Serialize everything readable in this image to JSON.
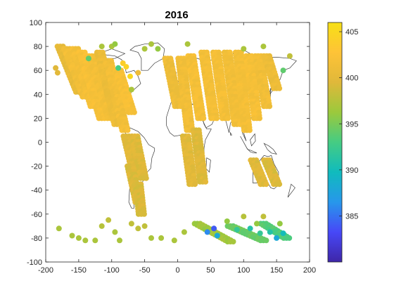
{
  "chart_data": {
    "type": "scatter",
    "title": "2016",
    "xlabel": "",
    "ylabel": "",
    "xlim": [
      -200,
      200
    ],
    "ylim": [
      -100,
      100
    ],
    "x_ticks": [
      -200,
      -150,
      -100,
      -50,
      0,
      50,
      100,
      150,
      200
    ],
    "y_ticks": [
      100,
      80,
      60,
      40,
      20,
      0,
      -20,
      -40,
      -60,
      -80,
      -100
    ],
    "grid": false,
    "colorbar": {
      "range": [
        380,
        406
      ],
      "ticks": [
        385,
        390,
        395,
        400,
        405
      ],
      "colormap": "parula",
      "colors": [
        "#3e26a8",
        "#4748f7",
        "#2797eb",
        "#10bbbd",
        "#45cc83",
        "#9bc93c",
        "#e0b83a",
        "#fec337",
        "#f7e016"
      ]
    },
    "background_map": "world coastlines",
    "swaths": [
      {
        "lon_start": -178,
        "lat_start": 80,
        "lon_end": -150,
        "lat_end": 42,
        "value": 400.4
      },
      {
        "lon_start": -168,
        "lat_start": 78,
        "lon_end": -140,
        "lat_end": 38,
        "value": 401.5
      },
      {
        "lon_start": -155,
        "lat_start": 78,
        "lon_end": -128,
        "lat_end": 30,
        "value": 401.8
      },
      {
        "lon_start": -145,
        "lat_start": 75,
        "lon_end": -115,
        "lat_end": 20,
        "value": 402.0
      },
      {
        "lon_start": -130,
        "lat_start": 72,
        "lon_end": -102,
        "lat_end": 20,
        "value": 401.6
      },
      {
        "lon_start": -118,
        "lat_start": 75,
        "lon_end": -92,
        "lat_end": 15,
        "value": 401.0
      },
      {
        "lon_start": -105,
        "lat_start": 68,
        "lon_end": -80,
        "lat_end": 10,
        "value": 401.6
      },
      {
        "lon_start": -90,
        "lat_start": 60,
        "lon_end": -70,
        "lat_end": 25,
        "value": 402.0
      },
      {
        "lon_start": -78,
        "lat_start": 5,
        "lon_end": -65,
        "lat_end": -25,
        "value": 399.8
      },
      {
        "lon_start": -65,
        "lat_start": 5,
        "lon_end": -52,
        "lat_end": -30,
        "value": 399.6
      },
      {
        "lon_start": -72,
        "lat_start": -20,
        "lon_end": -60,
        "lat_end": -50,
        "value": 399.4
      },
      {
        "lon_start": -60,
        "lat_start": -35,
        "lon_end": -55,
        "lat_end": -60,
        "value": 399.2
      },
      {
        "lon_start": -15,
        "lat_start": 70,
        "lon_end": 0,
        "lat_end": 30,
        "value": 401.0
      },
      {
        "lon_start": 5,
        "lat_start": 70,
        "lon_end": 18,
        "lat_end": 10,
        "value": 401.4
      },
      {
        "lon_start": 20,
        "lat_start": 72,
        "lon_end": 35,
        "lat_end": 20,
        "value": 401.8
      },
      {
        "lon_start": 12,
        "lat_start": 5,
        "lon_end": 22,
        "lat_end": -35,
        "value": 399.8
      },
      {
        "lon_start": 28,
        "lat_start": 10,
        "lon_end": 38,
        "lat_end": -33,
        "value": 399.6
      },
      {
        "lon_start": 40,
        "lat_start": 75,
        "lon_end": 55,
        "lat_end": 20,
        "value": 401.6
      },
      {
        "lon_start": 58,
        "lat_start": 75,
        "lon_end": 72,
        "lat_end": 20,
        "value": 401.8
      },
      {
        "lon_start": 75,
        "lat_start": 75,
        "lon_end": 90,
        "lat_end": 15,
        "value": 401.5
      },
      {
        "lon_start": 92,
        "lat_start": 75,
        "lon_end": 105,
        "lat_end": 10,
        "value": 401.7
      },
      {
        "lon_start": 108,
        "lat_start": 72,
        "lon_end": 120,
        "lat_end": 20,
        "value": 401.9
      },
      {
        "lon_start": 122,
        "lat_start": 72,
        "lon_end": 135,
        "lat_end": 30,
        "value": 401.4
      },
      {
        "lon_start": 135,
        "lat_start": 72,
        "lon_end": 150,
        "lat_end": 45,
        "value": 401.0
      },
      {
        "lon_start": 115,
        "lat_start": -15,
        "lon_end": 130,
        "lat_end": -35,
        "value": 399.6
      },
      {
        "lon_start": 135,
        "lat_start": -15,
        "lon_end": 150,
        "lat_end": -35,
        "value": 399.4
      },
      {
        "lon_start": 30,
        "lat_start": -68,
        "lon_end": 80,
        "lat_end": -83,
        "value": 396.5
      },
      {
        "lon_start": 80,
        "lat_start": -70,
        "lon_end": 130,
        "lat_end": -82,
        "value": 394.5
      },
      {
        "lon_start": 130,
        "lat_start": -68,
        "lon_end": 165,
        "lat_end": -80,
        "value": 393.5
      }
    ],
    "points": [
      {
        "lon": -180,
        "lat": -72,
        "value": 397
      },
      {
        "lon": -160,
        "lat": -78,
        "value": 397
      },
      {
        "lon": -150,
        "lat": -80,
        "value": 397
      },
      {
        "lon": -140,
        "lat": -82,
        "value": 397
      },
      {
        "lon": -125,
        "lat": -82,
        "value": 397
      },
      {
        "lon": -115,
        "lat": -70,
        "value": 397.5
      },
      {
        "lon": -105,
        "lat": -65,
        "value": 398
      },
      {
        "lon": -95,
        "lat": -75,
        "value": 397
      },
      {
        "lon": -88,
        "lat": -82,
        "value": 397
      },
      {
        "lon": -70,
        "lat": -68,
        "value": 398
      },
      {
        "lon": -60,
        "lat": -72,
        "value": 398
      },
      {
        "lon": -50,
        "lat": -70,
        "value": 398
      },
      {
        "lon": -40,
        "lat": -80,
        "value": 397
      },
      {
        "lon": -25,
        "lat": -80,
        "value": 397
      },
      {
        "lon": -5,
        "lat": -82,
        "value": 397
      },
      {
        "lon": 10,
        "lat": -75,
        "value": 397
      },
      {
        "lon": 45,
        "lat": -75,
        "value": 386
      },
      {
        "lon": 55,
        "lat": -72,
        "value": 384
      },
      {
        "lon": 60,
        "lat": -78,
        "value": 388
      },
      {
        "lon": 75,
        "lat": -66,
        "value": 396
      },
      {
        "lon": 90,
        "lat": -73,
        "value": 392
      },
      {
        "lon": 110,
        "lat": -72,
        "value": 391
      },
      {
        "lon": 125,
        "lat": -76,
        "value": 392
      },
      {
        "lon": 140,
        "lat": -75,
        "value": 391
      },
      {
        "lon": 150,
        "lat": -80,
        "value": 388
      },
      {
        "lon": 160,
        "lat": -76,
        "value": 390
      },
      {
        "lon": 155,
        "lat": -68,
        "value": 396
      },
      {
        "lon": 130,
        "lat": -62,
        "value": 398
      },
      {
        "lon": 100,
        "lat": -62,
        "value": 397.5
      },
      {
        "lon": 120,
        "lat": -68,
        "value": 396
      },
      {
        "lon": -90,
        "lat": 62,
        "value": 393
      },
      {
        "lon": -83,
        "lat": 66,
        "value": 404
      },
      {
        "lon": -78,
        "lat": 63,
        "value": 404.5
      },
      {
        "lon": -72,
        "lat": 55,
        "value": 405
      },
      {
        "lon": -60,
        "lat": 58,
        "value": 401
      },
      {
        "lon": -70,
        "lat": 44,
        "value": 397
      },
      {
        "lon": -135,
        "lat": 70,
        "value": 394
      },
      {
        "lon": 160,
        "lat": 60,
        "value": 394
      },
      {
        "lon": -185,
        "lat": 62,
        "value": 399.5
      },
      {
        "lon": -182,
        "lat": 58,
        "value": 399.8
      },
      {
        "lon": -50,
        "lat": 78,
        "value": 397
      },
      {
        "lon": -40,
        "lat": 82,
        "value": 397
      },
      {
        "lon": -30,
        "lat": 78,
        "value": 396
      },
      {
        "lon": 15,
        "lat": 82,
        "value": 397
      },
      {
        "lon": 100,
        "lat": 78,
        "value": 397
      },
      {
        "lon": 130,
        "lat": 80,
        "value": 397
      },
      {
        "lon": -115,
        "lat": 80,
        "value": 397
      },
      {
        "lon": -100,
        "lat": 80,
        "value": 397
      },
      {
        "lon": -95,
        "lat": 82,
        "value": 396
      },
      {
        "lon": 170,
        "lat": 72,
        "value": 398
      }
    ]
  }
}
